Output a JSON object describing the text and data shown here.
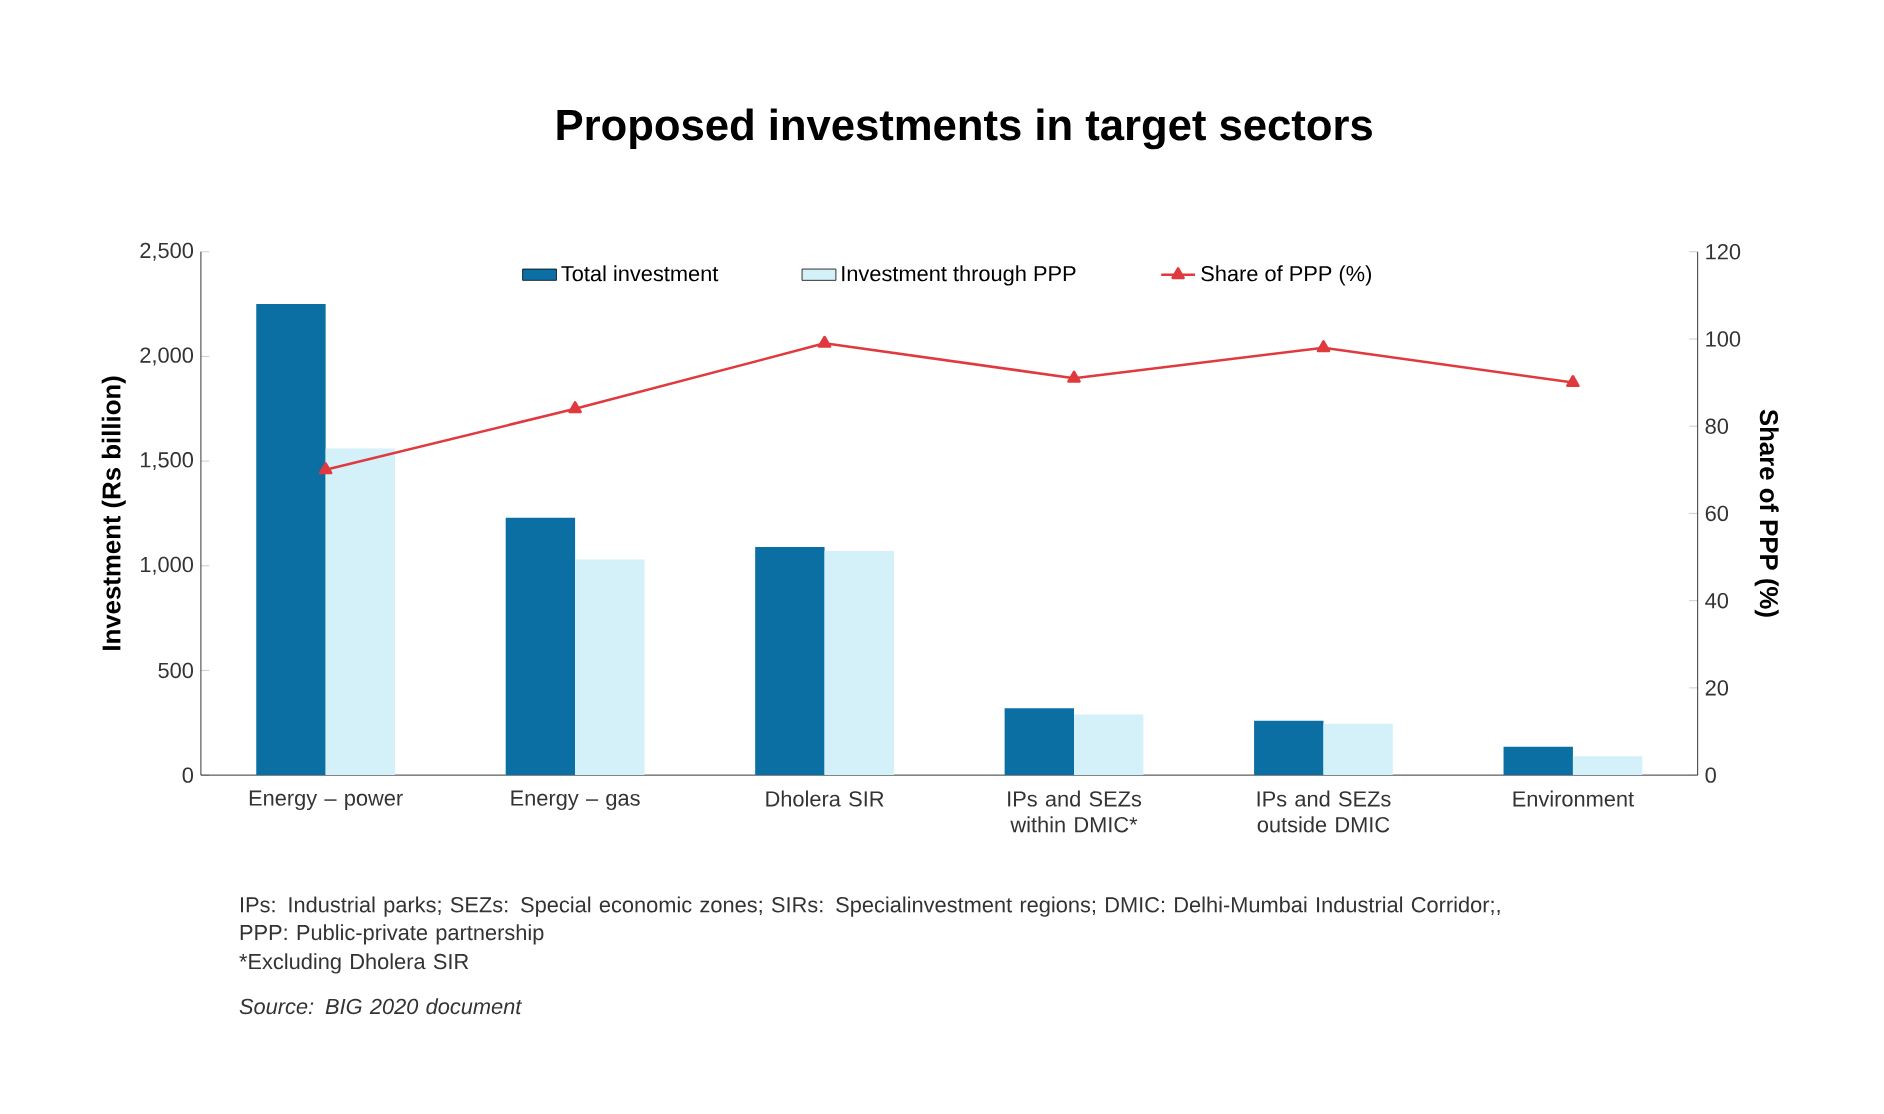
{
  "chart_data": {
    "type": "bar",
    "title": "Proposed investments in target sectors",
    "ylabel": "Investment (Rs billion)",
    "y2label": "Share of PPP (%)",
    "categories": [
      "Energy – power",
      "Energy – gas",
      "Dholera SIR",
      "IPs and SEZs within DMIC*",
      "IPs and SEZs outside DMIC",
      "Environment"
    ],
    "series": [
      {
        "name": "Total investment",
        "color": "#0b6fa4",
        "values": [
          2250,
          1230,
          1090,
          320,
          260,
          135
        ]
      },
      {
        "name": "Investment through PPP",
        "color": "#d4f0f8",
        "values": [
          1560,
          1030,
          1070,
          290,
          245,
          90
        ]
      },
      {
        "name": "Share of PPP (%)",
        "type": "line",
        "axis": "y2",
        "color": "#e0393e",
        "marker": "triangle",
        "values": [
          70,
          84,
          99,
          91,
          98,
          90
        ]
      }
    ],
    "ylim": [
      0,
      2500
    ],
    "yticks": [
      0,
      500,
      {
        "value": 1000,
        "label": "1,000"
      },
      {
        "value": 1500,
        "label": "1,500"
      },
      {
        "value": 2000,
        "label": "2,000"
      },
      {
        "value": 2500,
        "label": "2,500"
      }
    ],
    "y2lim": [
      0,
      120
    ],
    "y2ticks": [
      0,
      20,
      40,
      60,
      80,
      100,
      120
    ],
    "legend": "top",
    "annotations": [
      "IPs: Industrial parks; SEZs: Special economic zones; SIRs: Specialinvestment regions; DMIC: Delhi-Mumbai Industrial Corridor;, PPP: Public-private partnership",
      "*Excluding Dholera SIR",
      "Source: BIG 2020 document"
    ]
  }
}
